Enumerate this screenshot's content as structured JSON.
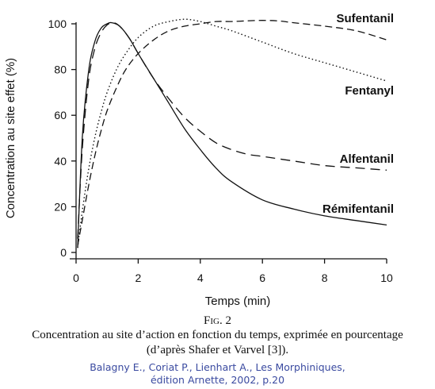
{
  "chart_data": {
    "type": "line",
    "xlabel": "Temps (min)",
    "ylabel": "Concentration au site effet (%)",
    "xlim": [
      0,
      10
    ],
    "ylim": [
      0,
      100
    ],
    "xticks": [
      0,
      2,
      4,
      6,
      8,
      10
    ],
    "yticks": [
      0,
      20,
      40,
      60,
      80,
      100
    ],
    "grid": false,
    "legend": "inline labels at right",
    "series": [
      {
        "name": "Sufentanil",
        "style": "dashed-long",
        "x": [
          0.05,
          0.2,
          0.4,
          0.6,
          0.8,
          1.0,
          1.3,
          1.6,
          2.0,
          2.5,
          3.0,
          3.5,
          4.0,
          4.5,
          5.0,
          5.5,
          6.0,
          6.5,
          7.0,
          8.0,
          9.0,
          10.0
        ],
        "y": [
          3,
          14,
          29,
          42,
          53,
          62,
          72,
          80,
          87,
          93,
          97,
          99,
          100,
          101,
          101,
          101.3,
          101.5,
          101.3,
          100.5,
          99,
          97,
          93
        ]
      },
      {
        "name": "Fentanyl",
        "style": "dotted",
        "x": [
          0.05,
          0.2,
          0.4,
          0.6,
          0.8,
          1.0,
          1.3,
          1.6,
          2.0,
          2.5,
          3.0,
          3.5,
          4.0,
          4.5,
          5.0,
          6.0,
          7.0,
          8.0,
          9.0,
          10.0
        ],
        "y": [
          2,
          18,
          36,
          50,
          61,
          70,
          80,
          87,
          94,
          99,
          101,
          102,
          101,
          99,
          97,
          92,
          87,
          83,
          79,
          75
        ]
      },
      {
        "name": "Alfentanil",
        "style": "dashed",
        "x": [
          0.05,
          0.2,
          0.4,
          0.6,
          0.8,
          1.0,
          1.2,
          1.4,
          1.7,
          2.0,
          2.5,
          3.0,
          3.5,
          4.0,
          4.5,
          5.0,
          5.5,
          6.0,
          7.0,
          8.0,
          9.0,
          10.0
        ],
        "y": [
          6,
          45,
          75,
          89,
          96,
          99.5,
          100.5,
          99,
          94,
          87,
          76,
          67,
          59,
          53,
          48,
          45,
          43,
          42,
          40,
          38,
          37,
          36
        ]
      },
      {
        "name": "Rémifentanil",
        "style": "solid",
        "x": [
          0.05,
          0.2,
          0.4,
          0.6,
          0.8,
          1.0,
          1.15,
          1.4,
          1.7,
          2.0,
          2.5,
          3.0,
          3.5,
          4.0,
          4.5,
          5.0,
          6.0,
          7.0,
          8.0,
          9.0,
          10.0
        ],
        "y": [
          2,
          50,
          79,
          92,
          98,
          100,
          100.5,
          99,
          94,
          87,
          76,
          65,
          54,
          45,
          37,
          31,
          23,
          19,
          16,
          14,
          12
        ]
      }
    ],
    "annotations": [
      {
        "text": "Sufentanil"
      },
      {
        "text": "Fentanyl"
      },
      {
        "text": "Alfentanil"
      },
      {
        "text": "Rémifentanil"
      }
    ]
  },
  "figure": {
    "label_prefix": "F",
    "label_rest": "ig. 2",
    "caption_line1": "Concentration au site d’action en fonction du temps, exprimée en pourcentage",
    "caption_line2": "(d’après Shafer et Varvel [3]).",
    "source_line1": "Balagny E., Coriat P., Lienhart A., Les Morphiniques,",
    "source_line2": "édition Arnette, 2002, p.20"
  }
}
